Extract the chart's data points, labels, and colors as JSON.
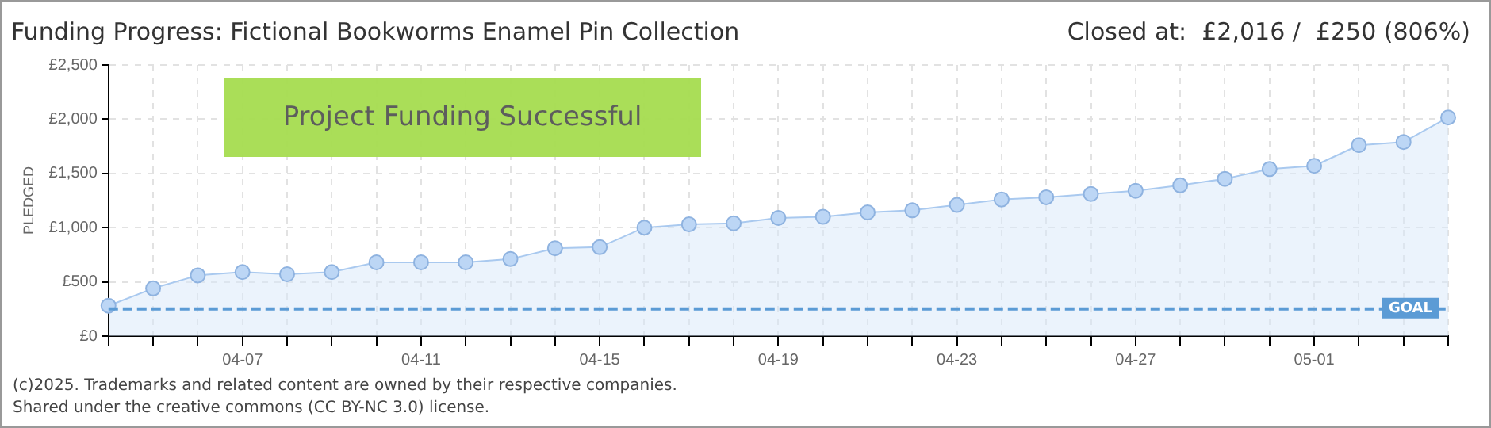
{
  "chart_data": {
    "type": "area",
    "title": "Funding Progress: Fictional Bookworms Enamel Pin Collection",
    "subtitle": "Closed at:  £2,016 /  £250 (806%)",
    "ylabel": "PLEDGED",
    "categories": [
      null,
      null,
      null,
      "04-07",
      null,
      null,
      null,
      "04-11",
      null,
      null,
      null,
      "04-15",
      null,
      null,
      null,
      "04-19",
      null,
      null,
      null,
      "04-23",
      null,
      null,
      null,
      "04-27",
      null,
      null,
      null,
      "05-01",
      null,
      null,
      null
    ],
    "series": [
      {
        "color": "#a9c9ef",
        "values": [
          280,
          440,
          560,
          590,
          570,
          590,
          680,
          680,
          680,
          710,
          810,
          820,
          1000,
          1030,
          1040,
          1090,
          1100,
          1140,
          1160,
          1210,
          1260,
          1280,
          1310,
          1340,
          1390,
          1450,
          1540,
          1570,
          1760,
          1790,
          2016
        ]
      }
    ],
    "ylim": [
      0,
      2500
    ],
    "yticks": [
      {
        "value": 0,
        "label": "£0"
      },
      {
        "value": 500,
        "label": "£500"
      },
      {
        "value": 1000,
        "label": "£1,000"
      },
      {
        "value": 1500,
        "label": "£1,500"
      },
      {
        "value": 2000,
        "label": "£2,000"
      },
      {
        "value": 2500,
        "label": "£2,500"
      }
    ],
    "ref_lines": [
      {
        "axis": "y",
        "value": 250,
        "label": "GOAL",
        "color": "#5b9bd5",
        "line_style": "dashed"
      }
    ],
    "grid": true,
    "marker": "circle",
    "line_style": "solid",
    "legend": false,
    "annotations": [
      "Project Funding Successful",
      "(c)2025. Trademarks and related content are owned by their respective companies.",
      "Shared under the creative commons (CC BY-NC 3.0) license."
    ]
  }
}
